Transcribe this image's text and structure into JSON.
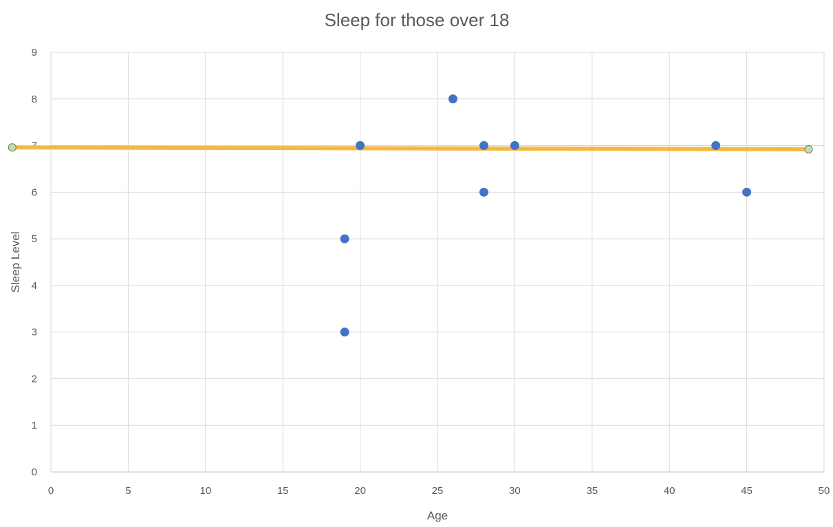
{
  "chart_data": {
    "type": "scatter",
    "title": "Sleep for those over 18",
    "xlabel": "Age",
    "ylabel": "Sleep Level",
    "xlim": [
      0,
      50
    ],
    "ylim": [
      0,
      9
    ],
    "x_ticks": [
      "0",
      "5",
      "10",
      "15",
      "20",
      "25",
      "30",
      "35",
      "40",
      "45",
      "50"
    ],
    "y_ticks": [
      "0",
      "1",
      "2",
      "3",
      "4",
      "5",
      "6",
      "7",
      "8",
      "9"
    ],
    "grid": true,
    "legend": "none",
    "series": [
      {
        "color": "#4472C4",
        "points": [
          {
            "x": 19,
            "y": 5
          },
          {
            "x": 19,
            "y": 3
          },
          {
            "x": 20,
            "y": 7
          },
          {
            "x": 26,
            "y": 8
          },
          {
            "x": 28,
            "y": 7
          },
          {
            "x": 28,
            "y": 6
          },
          {
            "x": 30,
            "y": 7
          },
          {
            "x": 43,
            "y": 7
          },
          {
            "x": 45,
            "y": 6
          }
        ]
      }
    ],
    "trendline": {
      "color": "#F4B942",
      "endpoint_color": "#C5E0A5",
      "start": {
        "x": -2.5,
        "y": 6.96
      },
      "end": {
        "x": 49,
        "y": 6.92
      }
    }
  }
}
